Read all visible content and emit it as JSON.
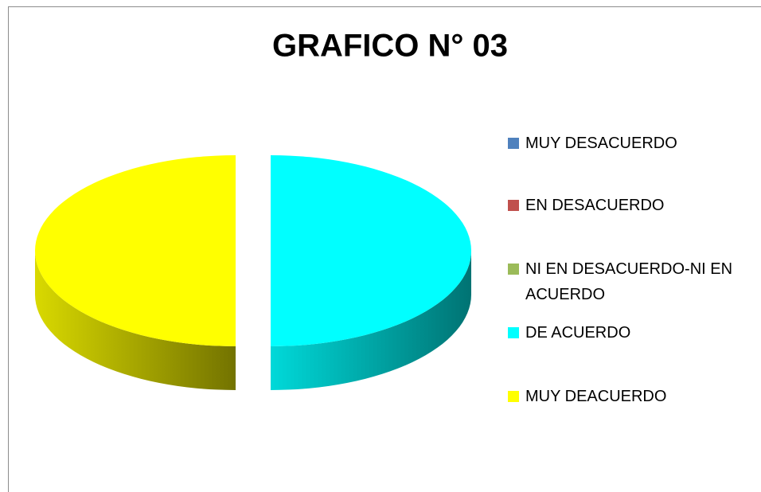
{
  "chart_data": {
    "type": "pie3d",
    "title": "GRAFICO N° 03",
    "categories": [
      "MUY DESACUERDO",
      "EN DESACUERDO",
      "NI EN DESACUERDO-NI EN ACUERDO",
      "DE ACUERDO",
      "MUY DEACUERDO"
    ],
    "values": [
      0,
      0,
      0,
      50,
      50
    ],
    "colors": [
      "#4f81bd",
      "#c0504d",
      "#9bbb59",
      "#00ffff",
      "#ffff00"
    ],
    "legend": "right"
  }
}
